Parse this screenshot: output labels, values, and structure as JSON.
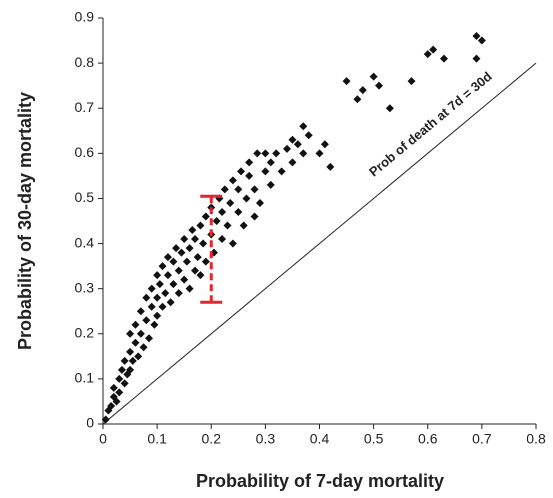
{
  "chart_data": {
    "type": "scatter",
    "xlabel": "Probability of 7-day mortality",
    "ylabel": "Probability of 30-day mortality",
    "xlim": [
      0,
      0.8
    ],
    "ylim": [
      0,
      0.9
    ],
    "xticks": [
      0,
      0.1,
      0.2,
      0.3,
      0.4,
      0.5,
      0.6,
      0.7,
      0.8
    ],
    "yticks": [
      0,
      0.1,
      0.2,
      0.3,
      0.4,
      0.5,
      0.6,
      0.7,
      0.8,
      0.9
    ],
    "series": [
      {
        "color": "#111111",
        "x": [
          0.005,
          0.01,
          0.015,
          0.02,
          0.02,
          0.025,
          0.03,
          0.03,
          0.035,
          0.04,
          0.04,
          0.045,
          0.05,
          0.05,
          0.05,
          0.055,
          0.06,
          0.06,
          0.065,
          0.07,
          0.07,
          0.075,
          0.08,
          0.08,
          0.085,
          0.09,
          0.09,
          0.095,
          0.1,
          0.1,
          0.1,
          0.105,
          0.11,
          0.11,
          0.115,
          0.12,
          0.12,
          0.125,
          0.13,
          0.13,
          0.135,
          0.14,
          0.14,
          0.145,
          0.15,
          0.15,
          0.155,
          0.16,
          0.16,
          0.165,
          0.17,
          0.17,
          0.175,
          0.18,
          0.18,
          0.185,
          0.19,
          0.19,
          0.2,
          0.2,
          0.205,
          0.21,
          0.215,
          0.22,
          0.22,
          0.225,
          0.23,
          0.235,
          0.24,
          0.24,
          0.25,
          0.25,
          0.255,
          0.26,
          0.265,
          0.27,
          0.27,
          0.28,
          0.28,
          0.285,
          0.29,
          0.3,
          0.3,
          0.31,
          0.31,
          0.32,
          0.33,
          0.34,
          0.35,
          0.35,
          0.36,
          0.37,
          0.38,
          0.4,
          0.41,
          0.37,
          0.42,
          0.45,
          0.47,
          0.48,
          0.5,
          0.51,
          0.53,
          0.57,
          0.6,
          0.61,
          0.63,
          0.69,
          0.7,
          0.69
        ],
        "values": [
          0.01,
          0.03,
          0.04,
          0.06,
          0.08,
          0.05,
          0.1,
          0.07,
          0.12,
          0.09,
          0.14,
          0.11,
          0.16,
          0.12,
          0.2,
          0.14,
          0.18,
          0.22,
          0.15,
          0.2,
          0.25,
          0.17,
          0.23,
          0.28,
          0.19,
          0.26,
          0.3,
          0.22,
          0.28,
          0.33,
          0.24,
          0.31,
          0.26,
          0.35,
          0.29,
          0.33,
          0.37,
          0.27,
          0.31,
          0.36,
          0.39,
          0.29,
          0.34,
          0.38,
          0.32,
          0.41,
          0.36,
          0.3,
          0.39,
          0.43,
          0.34,
          0.41,
          0.37,
          0.44,
          0.33,
          0.4,
          0.46,
          0.36,
          0.42,
          0.48,
          0.38,
          0.45,
          0.5,
          0.41,
          0.47,
          0.52,
          0.44,
          0.49,
          0.54,
          0.4,
          0.47,
          0.52,
          0.56,
          0.44,
          0.5,
          0.55,
          0.58,
          0.46,
          0.52,
          0.6,
          0.49,
          0.56,
          0.6,
          0.53,
          0.58,
          0.6,
          0.56,
          0.61,
          0.63,
          0.58,
          0.62,
          0.6,
          0.64,
          0.6,
          0.62,
          0.66,
          0.57,
          0.76,
          0.72,
          0.74,
          0.77,
          0.75,
          0.7,
          0.76,
          0.82,
          0.83,
          0.81,
          0.86,
          0.85,
          0.81
        ]
      }
    ],
    "reference_line": {
      "from": [
        0,
        0
      ],
      "to": [
        0.8,
        0.8
      ],
      "label": "Prob of death at 7d = 30d"
    },
    "error_bar": {
      "x": 0.2,
      "low": 0.27,
      "high": 0.505,
      "color": "#e0262c"
    }
  }
}
